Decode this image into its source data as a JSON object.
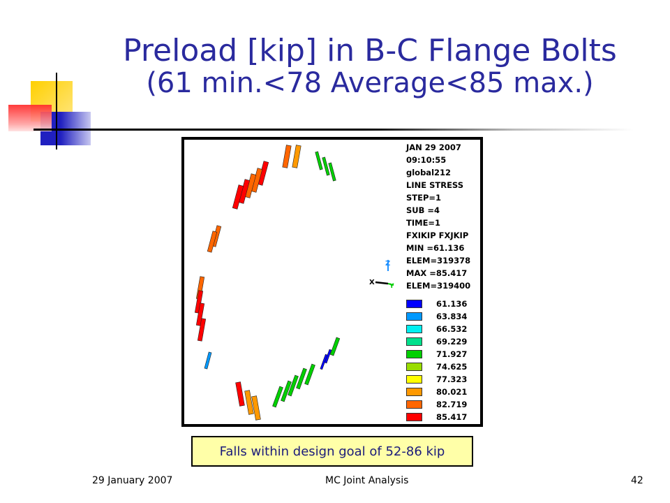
{
  "slide": {
    "title_line1": "Preload [kip] in B-C Flange Bolts",
    "title_line2": "(61 min.<78 Average<85 max.)",
    "note": "Falls within design goal of 52-86 kip",
    "footer_date": "29 January 2007",
    "footer_center": "MC Joint Analysis",
    "page_number": "42"
  },
  "plot_info": [
    "JAN 29 2007",
    "09:10:55",
    "global212",
    "LINE STRESS",
    "STEP=1",
    "SUB =4",
    "TIME=1",
    "FXIKIP  FXJKIP",
    "MIN =61.136",
    "ELEM=319378",
    "MAX =85.417",
    "ELEM=319400"
  ],
  "legend": [
    {
      "value": "61.136",
      "color": "#0000ff"
    },
    {
      "value": "63.834",
      "color": "#0099ff"
    },
    {
      "value": "66.532",
      "color": "#00f0f0"
    },
    {
      "value": "69.229",
      "color": "#00e08c"
    },
    {
      "value": "71.927",
      "color": "#00d000"
    },
    {
      "value": "74.625",
      "color": "#99dd00"
    },
    {
      "value": "77.323",
      "color": "#ffff00"
    },
    {
      "value": "80.021",
      "color": "#ff9900"
    },
    {
      "value": "82.719",
      "color": "#ff6600"
    },
    {
      "value": "85.417",
      "color": "#ff0000"
    }
  ],
  "triad": {
    "x": "X",
    "y": "Y",
    "z": "Z"
  },
  "colors": {
    "title": "#2a2a9e",
    "note_bg": "#ffffa8",
    "note_text": "#1a1a7a"
  }
}
